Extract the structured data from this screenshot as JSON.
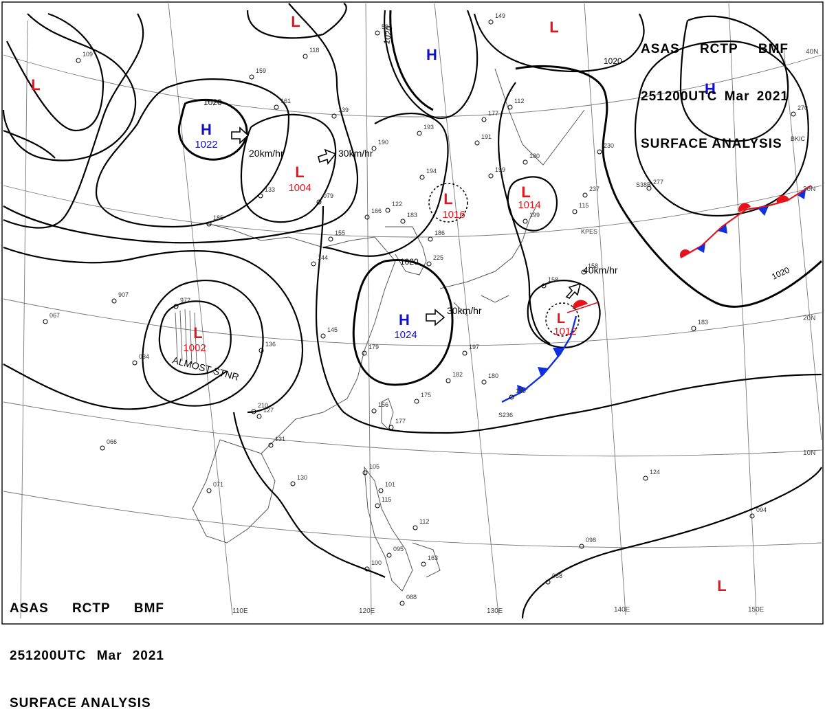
{
  "header": {
    "agency": "ASAS",
    "station": "RCTP",
    "office": "BMF",
    "valid_time": "251200UTC",
    "month": "Mar",
    "year": "2021",
    "product": "SURFACE ANALYSIS"
  },
  "colors": {
    "low": "#e8121b",
    "high": "#1010c8",
    "warm_front": "#e8121b",
    "cold_front": "#1030e0",
    "isobar": "#000000",
    "grid": "#666666",
    "coast": "#555555"
  },
  "axis_labels": {
    "lon_110": "110E",
    "lon_120": "120E",
    "lon_130": "130E",
    "lon_140": "140E",
    "lon_150": "150E",
    "lat_10": "10N",
    "lat_20": "20N",
    "lat_30": "30N",
    "lat_40": "40N"
  },
  "pressure_systems": [
    {
      "type": "H",
      "pressure": "1022"
    },
    {
      "type": "L",
      "pressure": "1004"
    },
    {
      "type": "L",
      "pressure": "1002",
      "note": "ALMOST STNR"
    },
    {
      "type": "H",
      "pressure": "1024"
    },
    {
      "type": "L",
      "pressure": "1016"
    },
    {
      "type": "L",
      "pressure": "1014"
    },
    {
      "type": "L",
      "pressure": "1012"
    },
    {
      "type": "H",
      "pressure": ""
    },
    {
      "type": "H",
      "pressure": ""
    },
    {
      "type": "L",
      "pressure": ""
    },
    {
      "type": "L",
      "pressure": ""
    },
    {
      "type": "L",
      "pressure": ""
    }
  ],
  "motion_vectors": [
    "20km/hr",
    "30km/hr",
    "30km/hr",
    "40km/hr"
  ],
  "isobar_labels": [
    "1020",
    "1020",
    "1020",
    "1020",
    "1020"
  ],
  "station_obs": [
    "109",
    "118",
    "159",
    "161",
    "139",
    "58",
    "149",
    "177",
    "112",
    "193",
    "191",
    "190",
    "199",
    "180",
    "230",
    "270",
    "277",
    "194",
    "166",
    "183",
    "186",
    "225",
    "199",
    "133",
    "185",
    "155",
    "144",
    "079",
    "972",
    "907",
    "067",
    "034",
    "136",
    "145",
    "179",
    "197",
    "182",
    "180",
    "175",
    "169",
    "156",
    "177",
    "131",
    "130",
    "071",
    "066",
    "105",
    "101",
    "115",
    "112",
    "095",
    "100",
    "163",
    "088",
    "088",
    "098",
    "094",
    "124",
    "183",
    "158",
    "158",
    "237",
    "115",
    "122",
    "210",
    "127"
  ],
  "station_codes": [
    "BKIC",
    "KPES",
    "S38B",
    "S236"
  ]
}
